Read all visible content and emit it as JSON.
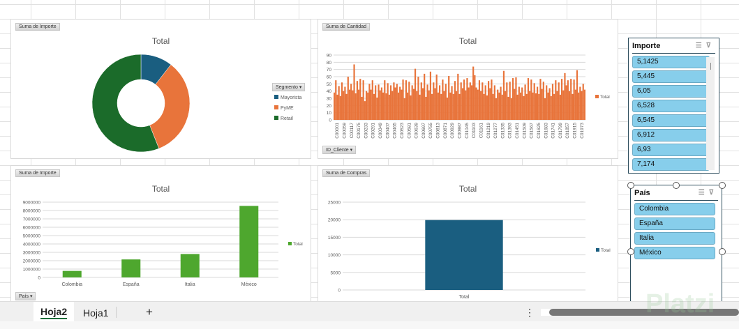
{
  "charts": {
    "segmento": {
      "field_label": "Suma de Importe",
      "title": "Total",
      "legend_field": "Segmento",
      "type": "donut",
      "slices": [
        {
          "name": "Mayorista",
          "value": 10.5,
          "color": "#1a5e80"
        },
        {
          "name": "PyME",
          "value": 33.5,
          "color": "#e8743b"
        },
        {
          "name": "Retail",
          "value": 56,
          "color": "#1b6b2a"
        }
      ]
    },
    "cantidad": {
      "field_label": "Suma de Cantidad",
      "title": "Total",
      "legend": "Total",
      "axis_field": "ID_Cliente",
      "type": "bar",
      "color": "#e8743b",
      "ylim": [
        0,
        90
      ],
      "yticks": [
        0,
        10,
        20,
        30,
        40,
        50,
        60,
        70,
        80,
        90
      ],
      "xticks": [
        "C00001",
        "C00059",
        "C00117",
        "C00175",
        "C00233",
        "C00291",
        "C00349",
        "C00407",
        "C00465",
        "C00523",
        "C00581",
        "C00639",
        "C00697",
        "C00755",
        "C00813",
        "C00871",
        "C00929",
        "C00987",
        "C01045",
        "C01103",
        "C01161",
        "C01219",
        "C01277",
        "C01335",
        "C01393",
        "C01451",
        "C01509",
        "C01567",
        "C01625",
        "C01683",
        "C01741",
        "C01799",
        "C01857",
        "C01915",
        "C01973"
      ],
      "values": [
        38,
        55,
        35,
        47,
        33,
        52,
        40,
        46,
        36,
        60,
        42,
        50,
        41,
        77,
        37,
        54,
        42,
        57,
        32,
        55,
        26,
        40,
        38,
        50,
        42,
        55,
        36,
        48,
        31,
        49,
        41,
        45,
        38,
        55,
        37,
        51,
        35,
        48,
        40,
        52,
        45,
        50,
        38,
        46,
        42,
        56,
        30,
        55,
        38,
        53,
        34,
        48,
        43,
        71,
        40,
        60,
        35,
        52,
        44,
        64,
        32,
        49,
        41,
        67,
        36,
        52,
        44,
        63,
        38,
        48,
        36,
        56,
        40,
        50,
        31,
        61,
        38,
        47,
        36,
        54,
        40,
        64,
        36,
        52,
        44,
        56,
        41,
        58,
        45,
        52,
        48,
        74,
        62,
        45,
        42,
        55,
        40,
        52,
        36,
        48,
        34,
        54,
        44,
        56,
        36,
        48,
        30,
        42,
        38,
        46,
        35,
        68,
        40,
        52,
        32,
        53,
        30,
        58,
        43,
        59,
        35,
        46,
        38,
        45,
        33,
        49,
        36,
        58,
        40,
        56,
        38,
        51,
        37,
        46,
        36,
        57,
        43,
        53,
        30,
        48,
        38,
        44,
        33,
        50,
        36,
        55,
        40,
        52,
        35,
        57,
        41,
        65,
        48,
        55,
        40,
        57,
        36,
        56,
        42,
        69,
        38,
        46,
        40,
        50,
        42
      ]
    },
    "pais_importe": {
      "field_label": "Suma de Importe",
      "title": "Total",
      "legend": "Total",
      "axis_field": "País",
      "type": "bar",
      "color": "#4ea72e",
      "ylim": [
        0,
        9000000
      ],
      "ytick_labels": [
        "0",
        "1000000",
        "2000000",
        "3000000",
        "4000000",
        "5000000",
        "6000000",
        "7000000",
        "8000000",
        "9000000"
      ],
      "categories": [
        "Colombia",
        "España",
        "Italia",
        "México"
      ],
      "values": [
        780000,
        2150000,
        2800000,
        8550000
      ]
    },
    "compras": {
      "field_label": "Suma de Compras",
      "title": "Total",
      "legend": "Total",
      "type": "bar",
      "color": "#1a5e80",
      "ylim": [
        0,
        25000
      ],
      "ytick_labels": [
        "0",
        "5000",
        "10000",
        "15000",
        "20000",
        "25000"
      ],
      "categories": [
        "Total"
      ],
      "values": [
        19900
      ]
    }
  },
  "slicers": {
    "importe": {
      "title": "Importe",
      "items": [
        "5,1425",
        "5,445",
        "6,05",
        "6,528",
        "6,545",
        "6,912",
        "6,93",
        "7,174"
      ]
    },
    "pais": {
      "title": "País",
      "items": [
        "Colombia",
        "España",
        "Italia",
        "México"
      ]
    }
  },
  "sheets": {
    "tabs": [
      "Hoja2",
      "Hoja1"
    ],
    "active": "Hoja2",
    "add": "+",
    "more": "⋮"
  },
  "watermark": "Platzi"
}
